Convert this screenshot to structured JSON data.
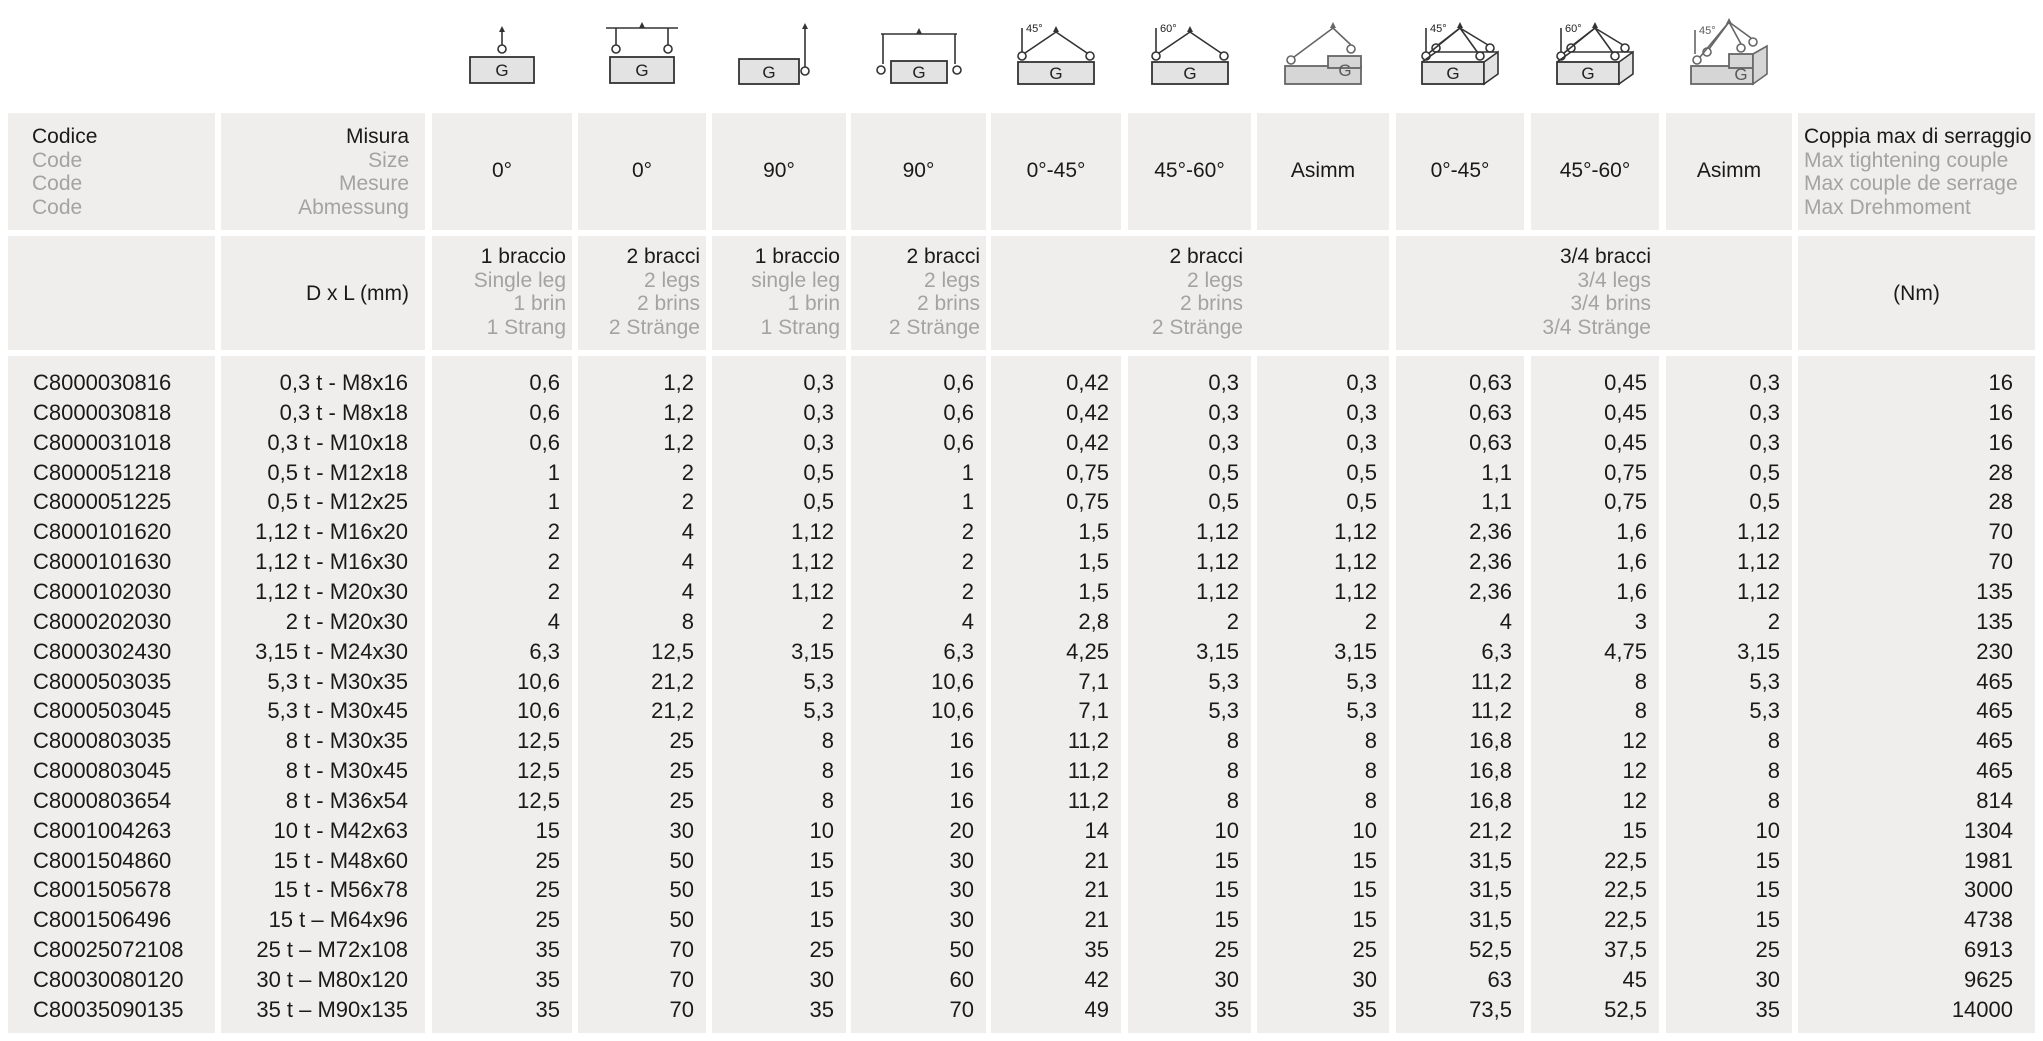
{
  "icons": {
    "box_letter": "G",
    "items": [
      {
        "name": "single-leg-vertical-lift-icon",
        "type": "v1"
      },
      {
        "name": "two-leg-beam-lift-icon",
        "type": "v2"
      },
      {
        "name": "single-leg-side-lift-icon",
        "type": "s1"
      },
      {
        "name": "two-leg-side-beam-lift-icon",
        "type": "s2"
      },
      {
        "name": "two-leg-45-degree-lift-icon",
        "type": "a2",
        "angle": "45°"
      },
      {
        "name": "two-leg-60-degree-lift-icon",
        "type": "a2",
        "angle": "60°"
      },
      {
        "name": "two-leg-asymmetric-lift-icon",
        "type": "asym2"
      },
      {
        "name": "four-leg-45-degree-lift-icon",
        "type": "a4",
        "angle": "45°"
      },
      {
        "name": "four-leg-60-degree-lift-icon",
        "type": "a4",
        "angle": "60°"
      },
      {
        "name": "four-leg-asymmetric-lift-icon",
        "type": "asym4",
        "angle": "45°"
      }
    ]
  },
  "header": {
    "row1": [
      {
        "main": "Codice",
        "subs": [
          "Code",
          "Code",
          "Code"
        ]
      },
      {
        "main": "Misura",
        "subs": [
          "Size",
          "Mesure",
          "Abmessung"
        ]
      },
      {
        "main": "0°"
      },
      {
        "main": "0°"
      },
      {
        "main": "90°"
      },
      {
        "main": "90°"
      },
      {
        "main": "0°-45°"
      },
      {
        "main": "45°-60°"
      },
      {
        "main": "Asimm"
      },
      {
        "main": "0°-45°"
      },
      {
        "main": "45°-60°"
      },
      {
        "main": "Asimm"
      },
      {
        "main": "Coppia max di serraggio",
        "subs": [
          "Max tightening couple",
          "Max couple de serrage",
          "Max Drehmoment"
        ]
      }
    ],
    "row2": {
      "size_unit": "D x L (mm)",
      "legs": [
        {
          "main": "1 braccio",
          "subs": [
            "Single leg",
            "1 brin",
            "1 Strang"
          ]
        },
        {
          "main": "2 bracci",
          "subs": [
            "2 legs",
            "2 brins",
            "2 Stränge"
          ]
        },
        {
          "main": "1 braccio",
          "subs": [
            "single leg",
            "1 brin",
            "1 Strang"
          ]
        },
        {
          "main": "2 bracci",
          "subs": [
            "2 legs",
            "2 brins",
            "2 Stränge"
          ]
        }
      ],
      "group_two": {
        "main": "2 bracci",
        "subs": [
          "2 legs",
          "2 brins",
          "2 Stränge"
        ]
      },
      "group_four": {
        "main": "3/4 bracci",
        "subs": [
          "3/4 legs",
          "3/4 brins",
          "3/4 Stränge"
        ]
      },
      "torque_unit": "(Nm)"
    }
  },
  "rows": [
    [
      "C8000030816",
      "0,3 t - M8x16",
      "0,6",
      "1,2",
      "0,3",
      "0,6",
      "0,42",
      "0,3",
      "0,3",
      "0,63",
      "0,45",
      "0,3",
      "16"
    ],
    [
      "C8000030818",
      "0,3 t - M8x18",
      "0,6",
      "1,2",
      "0,3",
      "0,6",
      "0,42",
      "0,3",
      "0,3",
      "0,63",
      "0,45",
      "0,3",
      "16"
    ],
    [
      "C8000031018",
      "0,3 t - M10x18",
      "0,6",
      "1,2",
      "0,3",
      "0,6",
      "0,42",
      "0,3",
      "0,3",
      "0,63",
      "0,45",
      "0,3",
      "16"
    ],
    [
      "C8000051218",
      "0,5 t - M12x18",
      "1",
      "2",
      "0,5",
      "1",
      "0,75",
      "0,5",
      "0,5",
      "1,1",
      "0,75",
      "0,5",
      "28"
    ],
    [
      "C8000051225",
      "0,5 t - M12x25",
      "1",
      "2",
      "0,5",
      "1",
      "0,75",
      "0,5",
      "0,5",
      "1,1",
      "0,75",
      "0,5",
      "28"
    ],
    [
      "C8000101620",
      "1,12 t - M16x20",
      "2",
      "4",
      "1,12",
      "2",
      "1,5",
      "1,12",
      "1,12",
      "2,36",
      "1,6",
      "1,12",
      "70"
    ],
    [
      "C8000101630",
      "1,12 t - M16x30",
      "2",
      "4",
      "1,12",
      "2",
      "1,5",
      "1,12",
      "1,12",
      "2,36",
      "1,6",
      "1,12",
      "70"
    ],
    [
      "C8000102030",
      "1,12 t - M20x30",
      "2",
      "4",
      "1,12",
      "2",
      "1,5",
      "1,12",
      "1,12",
      "2,36",
      "1,6",
      "1,12",
      "135"
    ],
    [
      "C8000202030",
      "2 t - M20x30",
      "4",
      "8",
      "2",
      "4",
      "2,8",
      "2",
      "2",
      "4",
      "3",
      "2",
      "135"
    ],
    [
      "C8000302430",
      "3,15 t - M24x30",
      "6,3",
      "12,5",
      "3,15",
      "6,3",
      "4,25",
      "3,15",
      "3,15",
      "6,3",
      "4,75",
      "3,15",
      "230"
    ],
    [
      "C8000503035",
      "5,3 t - M30x35",
      "10,6",
      "21,2",
      "5,3",
      "10,6",
      "7,1",
      "5,3",
      "5,3",
      "11,2",
      "8",
      "5,3",
      "465"
    ],
    [
      "C8000503045",
      "5,3 t - M30x45",
      "10,6",
      "21,2",
      "5,3",
      "10,6",
      "7,1",
      "5,3",
      "5,3",
      "11,2",
      "8",
      "5,3",
      "465"
    ],
    [
      "C8000803035",
      "8 t - M30x35",
      "12,5",
      "25",
      "8",
      "16",
      "11,2",
      "8",
      "8",
      "16,8",
      "12",
      "8",
      "465"
    ],
    [
      "C8000803045",
      "8 t - M30x45",
      "12,5",
      "25",
      "8",
      "16",
      "11,2",
      "8",
      "8",
      "16,8",
      "12",
      "8",
      "465"
    ],
    [
      "C8000803654",
      "8 t - M36x54",
      "12,5",
      "25",
      "8",
      "16",
      "11,2",
      "8",
      "8",
      "16,8",
      "12",
      "8",
      "814"
    ],
    [
      "C8001004263",
      "10 t - M42x63",
      "15",
      "30",
      "10",
      "20",
      "14",
      "10",
      "10",
      "21,2",
      "15",
      "10",
      "1304"
    ],
    [
      "C8001504860",
      "15 t - M48x60",
      "25",
      "50",
      "15",
      "30",
      "21",
      "15",
      "15",
      "31,5",
      "22,5",
      "15",
      "1981"
    ],
    [
      "C8001505678",
      "15 t - M56x78",
      "25",
      "50",
      "15",
      "30",
      "21",
      "15",
      "15",
      "31,5",
      "22,5",
      "15",
      "3000"
    ],
    [
      "C8001506496",
      "15 t – M64x96",
      "25",
      "50",
      "15",
      "30",
      "21",
      "15",
      "15",
      "31,5",
      "22,5",
      "15",
      "4738"
    ],
    [
      "C80025072108",
      "25 t – M72x108",
      "35",
      "70",
      "25",
      "50",
      "35",
      "25",
      "25",
      "52,5",
      "37,5",
      "25",
      "6913"
    ],
    [
      "C80030080120",
      "30 t – M80x120",
      "35",
      "70",
      "30",
      "60",
      "42",
      "30",
      "30",
      "63",
      "45",
      "30",
      "9625"
    ],
    [
      "C80035090135",
      "35 t – M90x135",
      "35",
      "70",
      "35",
      "70",
      "49",
      "35",
      "35",
      "73,5",
      "52,5",
      "35",
      "14000"
    ]
  ]
}
